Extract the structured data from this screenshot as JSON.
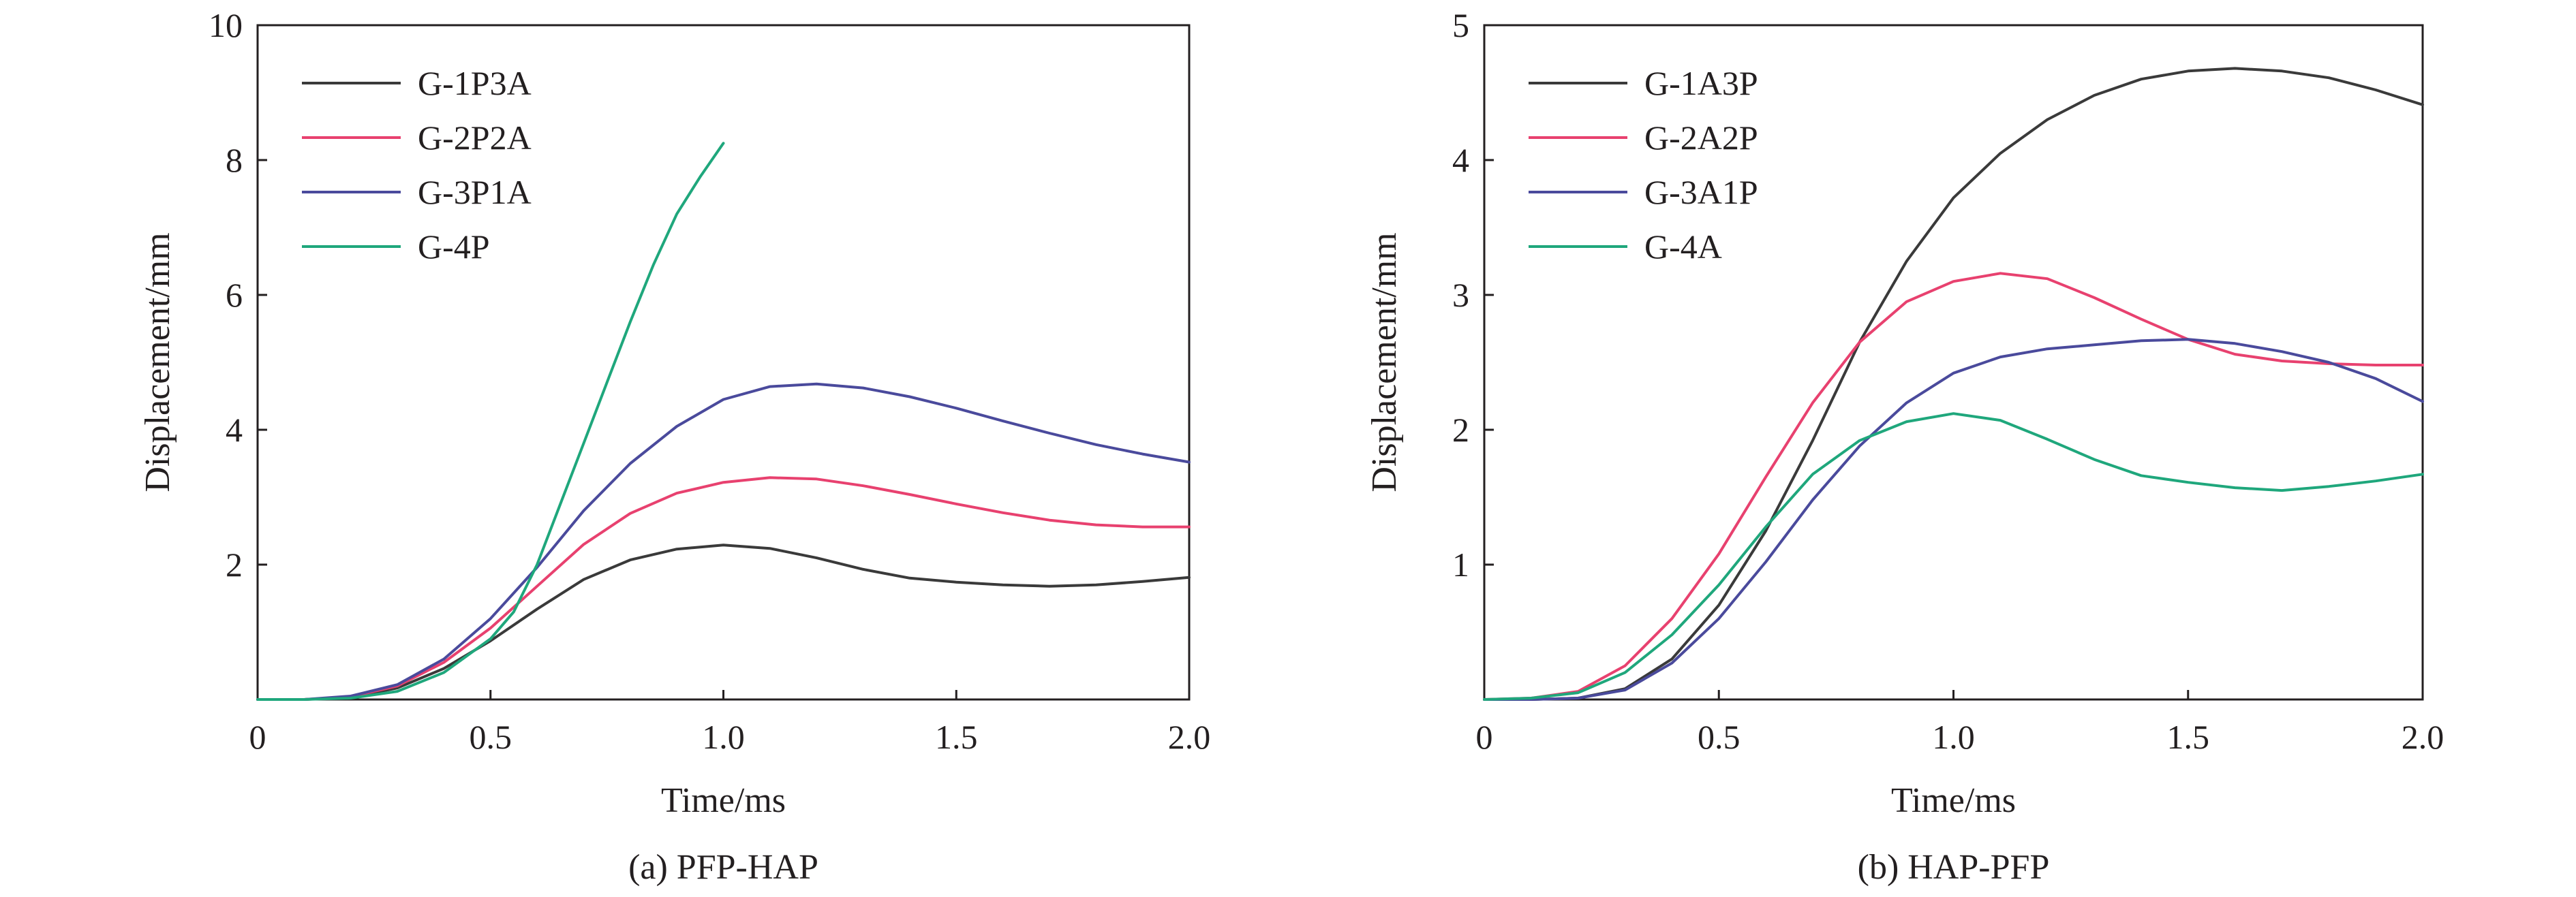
{
  "chart_data": [
    {
      "type": "line",
      "caption": "(a) PFP-HAP",
      "xlabel": "Time/ms",
      "ylabel": "Displacement/mm",
      "xlim": [
        0,
        2.0
      ],
      "ylim": [
        0,
        10
      ],
      "x_ticks": [
        {
          "value": 0,
          "label": "0"
        },
        {
          "value": 0.5,
          "label": "0.5"
        },
        {
          "value": 1.0,
          "label": "1.0"
        },
        {
          "value": 1.5,
          "label": "1.5"
        },
        {
          "value": 2.0,
          "label": "2.0"
        }
      ],
      "y_ticks": [
        {
          "value": 2,
          "label": "2"
        },
        {
          "value": 4,
          "label": "4"
        },
        {
          "value": 6,
          "label": "6"
        },
        {
          "value": 8,
          "label": "8"
        },
        {
          "value": 10,
          "label": "10"
        }
      ],
      "legend_position": "top-left",
      "series": [
        {
          "name": "G-1P3A",
          "color": "#3a3a3a",
          "points": [
            [
              0,
              0
            ],
            [
              0.1,
              0
            ],
            [
              0.2,
              0.03
            ],
            [
              0.3,
              0.17
            ],
            [
              0.4,
              0.46
            ],
            [
              0.5,
              0.87
            ],
            [
              0.6,
              1.34
            ],
            [
              0.7,
              1.78
            ],
            [
              0.8,
              2.07
            ],
            [
              0.9,
              2.23
            ],
            [
              1.0,
              2.29
            ],
            [
              1.1,
              2.24
            ],
            [
              1.2,
              2.1
            ],
            [
              1.3,
              1.93
            ],
            [
              1.4,
              1.8
            ],
            [
              1.5,
              1.74
            ],
            [
              1.6,
              1.7
            ],
            [
              1.7,
              1.68
            ],
            [
              1.8,
              1.7
            ],
            [
              1.9,
              1.75
            ],
            [
              2.0,
              1.81
            ]
          ]
        },
        {
          "name": "G-2P2A",
          "color": "#e8416f",
          "points": [
            [
              0,
              0
            ],
            [
              0.1,
              0
            ],
            [
              0.2,
              0.04
            ],
            [
              0.3,
              0.2
            ],
            [
              0.4,
              0.55
            ],
            [
              0.5,
              1.06
            ],
            [
              0.6,
              1.68
            ],
            [
              0.7,
              2.3
            ],
            [
              0.8,
              2.76
            ],
            [
              0.9,
              3.06
            ],
            [
              1.0,
              3.22
            ],
            [
              1.1,
              3.29
            ],
            [
              1.2,
              3.27
            ],
            [
              1.3,
              3.17
            ],
            [
              1.4,
              3.04
            ],
            [
              1.5,
              2.9
            ],
            [
              1.6,
              2.77
            ],
            [
              1.7,
              2.66
            ],
            [
              1.8,
              2.59
            ],
            [
              1.9,
              2.56
            ],
            [
              2.0,
              2.56
            ]
          ]
        },
        {
          "name": "G-3P1A",
          "color": "#4a4a9c",
          "points": [
            [
              0,
              0
            ],
            [
              0.1,
              0
            ],
            [
              0.2,
              0.05
            ],
            [
              0.3,
              0.22
            ],
            [
              0.4,
              0.6
            ],
            [
              0.5,
              1.2
            ],
            [
              0.6,
              1.96
            ],
            [
              0.7,
              2.8
            ],
            [
              0.8,
              3.5
            ],
            [
              0.9,
              4.05
            ],
            [
              1.0,
              4.45
            ],
            [
              1.1,
              4.64
            ],
            [
              1.2,
              4.68
            ],
            [
              1.3,
              4.62
            ],
            [
              1.4,
              4.49
            ],
            [
              1.5,
              4.32
            ],
            [
              1.6,
              4.13
            ],
            [
              1.7,
              3.95
            ],
            [
              1.8,
              3.78
            ],
            [
              1.9,
              3.64
            ],
            [
              2.0,
              3.52
            ]
          ]
        },
        {
          "name": "G-4P",
          "color": "#1fa77c",
          "points": [
            [
              0,
              0
            ],
            [
              0.1,
              0
            ],
            [
              0.2,
              0.02
            ],
            [
              0.3,
              0.12
            ],
            [
              0.4,
              0.4
            ],
            [
              0.5,
              0.9
            ],
            [
              0.55,
              1.3
            ],
            [
              0.6,
              2.0
            ],
            [
              0.65,
              2.9
            ],
            [
              0.7,
              3.8
            ],
            [
              0.75,
              4.7
            ],
            [
              0.8,
              5.6
            ],
            [
              0.85,
              6.45
            ],
            [
              0.9,
              7.2
            ],
            [
              0.95,
              7.75
            ],
            [
              1.0,
              8.25
            ]
          ]
        }
      ]
    },
    {
      "type": "line",
      "caption": "(b) HAP-PFP",
      "xlabel": "Time/ms",
      "ylabel": "Displacement/mm",
      "xlim": [
        0,
        2.0
      ],
      "ylim": [
        0,
        5
      ],
      "x_ticks": [
        {
          "value": 0,
          "label": "0"
        },
        {
          "value": 0.5,
          "label": "0.5"
        },
        {
          "value": 1.0,
          "label": "1.0"
        },
        {
          "value": 1.5,
          "label": "1.5"
        },
        {
          "value": 2.0,
          "label": "2.0"
        }
      ],
      "y_ticks": [
        {
          "value": 1,
          "label": "1"
        },
        {
          "value": 2,
          "label": "2"
        },
        {
          "value": 3,
          "label": "3"
        },
        {
          "value": 4,
          "label": "4"
        },
        {
          "value": 5,
          "label": "5"
        }
      ],
      "legend_position": "top-left",
      "series": [
        {
          "name": "G-1A3P",
          "color": "#3a3a3a",
          "points": [
            [
              0,
              0
            ],
            [
              0.1,
              0
            ],
            [
              0.2,
              0.01
            ],
            [
              0.3,
              0.08
            ],
            [
              0.4,
              0.3
            ],
            [
              0.5,
              0.7
            ],
            [
              0.6,
              1.25
            ],
            [
              0.7,
              1.92
            ],
            [
              0.8,
              2.65
            ],
            [
              0.9,
              3.25
            ],
            [
              1.0,
              3.72
            ],
            [
              1.1,
              4.05
            ],
            [
              1.2,
              4.3
            ],
            [
              1.3,
              4.48
            ],
            [
              1.4,
              4.6
            ],
            [
              1.5,
              4.66
            ],
            [
              1.6,
              4.68
            ],
            [
              1.7,
              4.66
            ],
            [
              1.8,
              4.61
            ],
            [
              1.9,
              4.52
            ],
            [
              2.0,
              4.41
            ]
          ]
        },
        {
          "name": "G-2A2P",
          "color": "#e8416f",
          "points": [
            [
              0,
              0
            ],
            [
              0.1,
              0.01
            ],
            [
              0.2,
              0.06
            ],
            [
              0.3,
              0.25
            ],
            [
              0.4,
              0.6
            ],
            [
              0.5,
              1.08
            ],
            [
              0.6,
              1.65
            ],
            [
              0.7,
              2.2
            ],
            [
              0.8,
              2.65
            ],
            [
              0.9,
              2.95
            ],
            [
              1.0,
              3.1
            ],
            [
              1.1,
              3.16
            ],
            [
              1.2,
              3.12
            ],
            [
              1.3,
              2.98
            ],
            [
              1.4,
              2.82
            ],
            [
              1.5,
              2.67
            ],
            [
              1.6,
              2.56
            ],
            [
              1.7,
              2.51
            ],
            [
              1.8,
              2.49
            ],
            [
              1.9,
              2.48
            ],
            [
              2.0,
              2.48
            ]
          ]
        },
        {
          "name": "G-3A1P",
          "color": "#4a4a9c",
          "points": [
            [
              0,
              0
            ],
            [
              0.1,
              0
            ],
            [
              0.2,
              0.01
            ],
            [
              0.3,
              0.07
            ],
            [
              0.4,
              0.27
            ],
            [
              0.5,
              0.6
            ],
            [
              0.6,
              1.02
            ],
            [
              0.7,
              1.48
            ],
            [
              0.8,
              1.88
            ],
            [
              0.9,
              2.2
            ],
            [
              1.0,
              2.42
            ],
            [
              1.1,
              2.54
            ],
            [
              1.2,
              2.6
            ],
            [
              1.3,
              2.63
            ],
            [
              1.4,
              2.66
            ],
            [
              1.5,
              2.67
            ],
            [
              1.6,
              2.64
            ],
            [
              1.7,
              2.58
            ],
            [
              1.8,
              2.5
            ],
            [
              1.9,
              2.38
            ],
            [
              2.0,
              2.21
            ]
          ]
        },
        {
          "name": "G-4A",
          "color": "#1fa77c",
          "points": [
            [
              0,
              0
            ],
            [
              0.1,
              0.01
            ],
            [
              0.2,
              0.05
            ],
            [
              0.3,
              0.2
            ],
            [
              0.4,
              0.48
            ],
            [
              0.5,
              0.85
            ],
            [
              0.6,
              1.28
            ],
            [
              0.7,
              1.67
            ],
            [
              0.8,
              1.92
            ],
            [
              0.9,
              2.06
            ],
            [
              1.0,
              2.12
            ],
            [
              1.1,
              2.07
            ],
            [
              1.2,
              1.93
            ],
            [
              1.3,
              1.78
            ],
            [
              1.4,
              1.66
            ],
            [
              1.5,
              1.61
            ],
            [
              1.6,
              1.57
            ],
            [
              1.7,
              1.55
            ],
            [
              1.8,
              1.58
            ],
            [
              1.9,
              1.62
            ],
            [
              2.0,
              1.67
            ]
          ]
        }
      ]
    }
  ]
}
